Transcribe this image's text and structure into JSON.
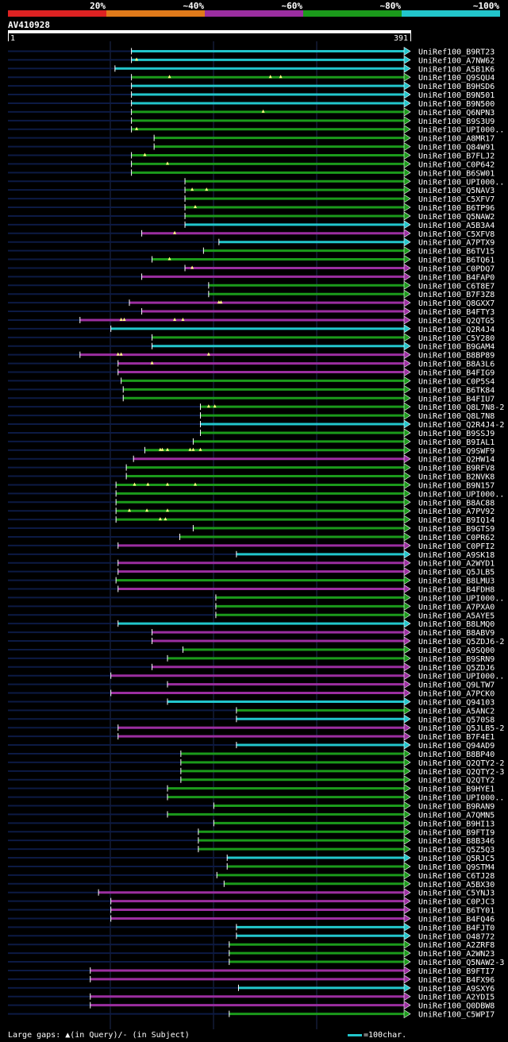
{
  "legend": {
    "colors": [
      "#dd2222",
      "#e07a1a",
      "#9b2ea0",
      "#1b9a1b",
      "#22c6cc"
    ],
    "labels": [
      "20%",
      "~40%",
      "~60%",
      "~80%",
      "~100%"
    ]
  },
  "query": {
    "id": "AV410928",
    "start": "1",
    "end": "391"
  },
  "footer": "Large gaps: ▲(in Query)/- (in Subject)",
  "scale_label": "=100char.",
  "chart_data": {
    "type": "alignment-overview",
    "query_length": 391,
    "identity_bins": [
      "20%",
      "~40%",
      "~60%",
      "~80%",
      "~100%"
    ],
    "hits": [
      {
        "label": "UniRef100_B9RT23",
        "start": 120,
        "end": 391,
        "color": "cyan",
        "gaps": []
      },
      {
        "label": "UniRef100_A7NW62",
        "start": 120,
        "end": 391,
        "color": "cyan",
        "gaps": [
          125
        ]
      },
      {
        "label": "UniRef100_A5B1K6",
        "start": 104,
        "end": 391,
        "color": "cyan",
        "gaps": []
      },
      {
        "label": "UniRef100_Q9SQU4",
        "start": 120,
        "end": 391,
        "color": "green",
        "gaps": [
          157,
          255,
          265
        ]
      },
      {
        "label": "UniRef100_B9HSD6",
        "start": 120,
        "end": 391,
        "color": "cyan",
        "gaps": []
      },
      {
        "label": "UniRef100_B9N501",
        "start": 120,
        "end": 391,
        "color": "cyan",
        "gaps": []
      },
      {
        "label": "UniRef100_B9N500",
        "start": 120,
        "end": 391,
        "color": "cyan",
        "gaps": []
      },
      {
        "label": "UniRef100_Q6NPN3",
        "start": 120,
        "end": 391,
        "color": "green",
        "gaps": [
          248
        ]
      },
      {
        "label": "UniRef100_B9S3U9",
        "start": 120,
        "end": 391,
        "color": "green",
        "gaps": []
      },
      {
        "label": "UniRef100_UPI000..",
        "start": 120,
        "end": 391,
        "color": "green",
        "gaps": [
          125
        ]
      },
      {
        "label": "UniRef100_A8MR17",
        "start": 142,
        "end": 391,
        "color": "green",
        "gaps": []
      },
      {
        "label": "UniRef100_Q84W91",
        "start": 142,
        "end": 391,
        "color": "green",
        "gaps": []
      },
      {
        "label": "UniRef100_B7FLJ2",
        "start": 120,
        "end": 391,
        "color": "green",
        "gaps": [
          133
        ]
      },
      {
        "label": "UniRef100_C0P642",
        "start": 120,
        "end": 391,
        "color": "green",
        "gaps": [
          155
        ]
      },
      {
        "label": "UniRef100_B6SW01",
        "start": 120,
        "end": 391,
        "color": "green",
        "gaps": []
      },
      {
        "label": "UniRef100_UPI000..",
        "start": 172,
        "end": 391,
        "color": "green",
        "gaps": []
      },
      {
        "label": "UniRef100_Q5NAV3",
        "start": 172,
        "end": 391,
        "color": "green",
        "gaps": [
          179,
          193
        ]
      },
      {
        "label": "UniRef100_C5XFV7",
        "start": 172,
        "end": 391,
        "color": "green",
        "gaps": []
      },
      {
        "label": "UniRef100_B6TP96",
        "start": 172,
        "end": 391,
        "color": "green",
        "gaps": [
          182
        ]
      },
      {
        "label": "UniRef100_Q5NAW2",
        "start": 172,
        "end": 391,
        "color": "green",
        "gaps": []
      },
      {
        "label": "UniRef100_A5B3A4",
        "start": 172,
        "end": 391,
        "color": "cyan",
        "gaps": []
      },
      {
        "label": "UniRef100_C5XFV8",
        "start": 130,
        "end": 391,
        "color": "purple",
        "gaps": [
          162
        ]
      },
      {
        "label": "UniRef100_A7PTX9",
        "start": 205,
        "end": 391,
        "color": "cyan",
        "gaps": []
      },
      {
        "label": "UniRef100_B6TV15",
        "start": 190,
        "end": 391,
        "color": "green",
        "gaps": []
      },
      {
        "label": "UniRef100_B6TQ61",
        "start": 140,
        "end": 391,
        "color": "green",
        "gaps": [
          157
        ]
      },
      {
        "label": "UniRef100_C0PDQ7",
        "start": 172,
        "end": 391,
        "color": "purple",
        "gaps": [
          179
        ]
      },
      {
        "label": "UniRef100_B4FAP0",
        "start": 130,
        "end": 391,
        "color": "purple",
        "gaps": []
      },
      {
        "label": "UniRef100_C6T8E7",
        "start": 195,
        "end": 391,
        "color": "green",
        "gaps": []
      },
      {
        "label": "UniRef100_B7F3Z8",
        "start": 195,
        "end": 391,
        "color": "green",
        "gaps": []
      },
      {
        "label": "UniRef100_Q8GXX7",
        "start": 118,
        "end": 391,
        "color": "purple",
        "gaps": [
          205,
          207
        ]
      },
      {
        "label": "UniRef100_B4FTY3",
        "start": 130,
        "end": 391,
        "color": "purple",
        "gaps": []
      },
      {
        "label": "UniRef100_Q2QTG5",
        "start": 70,
        "end": 391,
        "color": "purple",
        "gaps": [
          110,
          113,
          162,
          170
        ]
      },
      {
        "label": "UniRef100_Q2R4J4",
        "start": 100,
        "end": 391,
        "color": "cyan",
        "gaps": []
      },
      {
        "label": "UniRef100_C5Y280",
        "start": 140,
        "end": 391,
        "color": "green",
        "gaps": []
      },
      {
        "label": "UniRef100_B9GAM4",
        "start": 140,
        "end": 391,
        "color": "cyan",
        "gaps": []
      },
      {
        "label": "UniRef100_B8BP89",
        "start": 70,
        "end": 391,
        "color": "purple",
        "gaps": [
          107,
          110,
          195
        ]
      },
      {
        "label": "UniRef100_B8A3L6",
        "start": 107,
        "end": 391,
        "color": "purple",
        "gaps": [
          140
        ]
      },
      {
        "label": "UniRef100_B4FIG9",
        "start": 107,
        "end": 391,
        "color": "purple",
        "gaps": []
      },
      {
        "label": "UniRef100_C0P5S4",
        "start": 110,
        "end": 391,
        "color": "green",
        "gaps": []
      },
      {
        "label": "UniRef100_B6TK84",
        "start": 112,
        "end": 391,
        "color": "green",
        "gaps": []
      },
      {
        "label": "UniRef100_B4FIU7",
        "start": 112,
        "end": 391,
        "color": "green",
        "gaps": []
      },
      {
        "label": "UniRef100_Q8L7N8-2",
        "start": 187,
        "end": 391,
        "color": "green",
        "gaps": [
          195,
          201
        ]
      },
      {
        "label": "UniRef100_Q8L7N8",
        "start": 187,
        "end": 391,
        "color": "green",
        "gaps": []
      },
      {
        "label": "UniRef100_Q2R4J4-2",
        "start": 187,
        "end": 391,
        "color": "cyan",
        "gaps": []
      },
      {
        "label": "UniRef100_B9SSJ9",
        "start": 187,
        "end": 391,
        "color": "green",
        "gaps": []
      },
      {
        "label": "UniRef100_B9IAL1",
        "start": 180,
        "end": 391,
        "color": "green",
        "gaps": []
      },
      {
        "label": "UniRef100_Q9SWF9",
        "start": 133,
        "end": 391,
        "color": "green",
        "gaps": [
          148,
          150,
          155,
          177,
          180,
          187
        ]
      },
      {
        "label": "UniRef100_Q2HW14",
        "start": 122,
        "end": 391,
        "color": "purple",
        "gaps": []
      },
      {
        "label": "UniRef100_B9RFV8",
        "start": 115,
        "end": 391,
        "color": "green",
        "gaps": []
      },
      {
        "label": "UniRef100_B2NVK8",
        "start": 115,
        "end": 391,
        "color": "green",
        "gaps": []
      },
      {
        "label": "UniRef100_B9N157",
        "start": 105,
        "end": 391,
        "color": "green",
        "gaps": [
          123,
          136,
          155,
          182
        ]
      },
      {
        "label": "UniRef100_UPI000..",
        "start": 105,
        "end": 391,
        "color": "green",
        "gaps": []
      },
      {
        "label": "UniRef100_B8AC88",
        "start": 105,
        "end": 391,
        "color": "green",
        "gaps": []
      },
      {
        "label": "UniRef100_A7PV92",
        "start": 105,
        "end": 391,
        "color": "green",
        "gaps": [
          118,
          135,
          155
        ]
      },
      {
        "label": "UniRef100_B9IQ14",
        "start": 105,
        "end": 391,
        "color": "green",
        "gaps": [
          148,
          153
        ]
      },
      {
        "label": "UniRef100_B9GTS9",
        "start": 180,
        "end": 391,
        "color": "green",
        "gaps": []
      },
      {
        "label": "UniRef100_C0PR62",
        "start": 167,
        "end": 391,
        "color": "green",
        "gaps": []
      },
      {
        "label": "UniRef100_C0PFI2",
        "start": 107,
        "end": 391,
        "color": "purple",
        "gaps": []
      },
      {
        "label": "UniRef100_A9SK18",
        "start": 222,
        "end": 391,
        "color": "cyan",
        "gaps": []
      },
      {
        "label": "UniRef100_A2WYD1",
        "start": 107,
        "end": 391,
        "color": "purple",
        "gaps": []
      },
      {
        "label": "UniRef100_Q5JLB5",
        "start": 107,
        "end": 391,
        "color": "purple",
        "gaps": []
      },
      {
        "label": "UniRef100_B8LMU3",
        "start": 105,
        "end": 391,
        "color": "green",
        "gaps": []
      },
      {
        "label": "UniRef100_B4FDH8",
        "start": 107,
        "end": 391,
        "color": "purple",
        "gaps": []
      },
      {
        "label": "UniRef100_UPI000..",
        "start": 202,
        "end": 391,
        "color": "green",
        "gaps": []
      },
      {
        "label": "UniRef100_A7PXA0",
        "start": 202,
        "end": 391,
        "color": "green",
        "gaps": []
      },
      {
        "label": "UniRef100_A5AYE5",
        "start": 202,
        "end": 391,
        "color": "green",
        "gaps": []
      },
      {
        "label": "UniRef100_B8LMQ0",
        "start": 107,
        "end": 391,
        "color": "cyan",
        "gaps": []
      },
      {
        "label": "UniRef100_B8ABV9",
        "start": 140,
        "end": 391,
        "color": "purple",
        "gaps": []
      },
      {
        "label": "UniRef100_Q5ZDJ6-2",
        "start": 140,
        "end": 391,
        "color": "purple",
        "gaps": []
      },
      {
        "label": "UniRef100_A9SQ00",
        "start": 170,
        "end": 391,
        "color": "green",
        "gaps": []
      },
      {
        "label": "UniRef100_B9SRN9",
        "start": 155,
        "end": 391,
        "color": "green",
        "gaps": []
      },
      {
        "label": "UniRef100_Q5ZDJ6",
        "start": 140,
        "end": 391,
        "color": "purple",
        "gaps": []
      },
      {
        "label": "UniRef100_UPI000..",
        "start": 100,
        "end": 391,
        "color": "purple",
        "gaps": []
      },
      {
        "label": "UniRef100_Q9LTW7",
        "start": 155,
        "end": 391,
        "color": "purple",
        "gaps": []
      },
      {
        "label": "UniRef100_A7PCK0",
        "start": 100,
        "end": 391,
        "color": "purple",
        "gaps": []
      },
      {
        "label": "UniRef100_Q94103",
        "start": 155,
        "end": 391,
        "color": "cyan",
        "gaps": []
      },
      {
        "label": "UniRef100_A5ANC2",
        "start": 222,
        "end": 391,
        "color": "green",
        "gaps": []
      },
      {
        "label": "UniRef100_Q570S8",
        "start": 222,
        "end": 391,
        "color": "cyan",
        "gaps": []
      },
      {
        "label": "UniRef100_Q5JLB5-2",
        "start": 107,
        "end": 391,
        "color": "purple",
        "gaps": []
      },
      {
        "label": "UniRef100_B7F4E1",
        "start": 107,
        "end": 391,
        "color": "purple",
        "gaps": []
      },
      {
        "label": "UniRef100_Q94AD9",
        "start": 222,
        "end": 391,
        "color": "cyan",
        "gaps": []
      },
      {
        "label": "UniRef100_B8BP40",
        "start": 168,
        "end": 391,
        "color": "green",
        "gaps": []
      },
      {
        "label": "UniRef100_Q2QTY2-2",
        "start": 168,
        "end": 391,
        "color": "green",
        "gaps": []
      },
      {
        "label": "UniRef100_Q2QTY2-3",
        "start": 168,
        "end": 391,
        "color": "green",
        "gaps": []
      },
      {
        "label": "UniRef100_Q2QTY2",
        "start": 168,
        "end": 391,
        "color": "green",
        "gaps": []
      },
      {
        "label": "UniRef100_B9HYE1",
        "start": 155,
        "end": 391,
        "color": "green",
        "gaps": []
      },
      {
        "label": "UniRef100_UPI000..",
        "start": 155,
        "end": 391,
        "color": "green",
        "gaps": []
      },
      {
        "label": "UniRef100_B9RAN9",
        "start": 200,
        "end": 391,
        "color": "green",
        "gaps": []
      },
      {
        "label": "UniRef100_A7QMN5",
        "start": 155,
        "end": 391,
        "color": "green",
        "gaps": []
      },
      {
        "label": "UniRef100_B9HI13",
        "start": 200,
        "end": 391,
        "color": "green",
        "gaps": []
      },
      {
        "label": "UniRef100_B9FTI9",
        "start": 185,
        "end": 391,
        "color": "green",
        "gaps": []
      },
      {
        "label": "UniRef100_B8B346",
        "start": 185,
        "end": 391,
        "color": "green",
        "gaps": []
      },
      {
        "label": "UniRef100_Q5Z5Q3",
        "start": 185,
        "end": 391,
        "color": "green",
        "gaps": []
      },
      {
        "label": "UniRef100_Q5RJC5",
        "start": 213,
        "end": 391,
        "color": "cyan",
        "gaps": []
      },
      {
        "label": "UniRef100_Q9STM4",
        "start": 213,
        "end": 391,
        "color": "green",
        "gaps": []
      },
      {
        "label": "UniRef100_C6TJ28",
        "start": 203,
        "end": 391,
        "color": "green",
        "gaps": []
      },
      {
        "label": "UniRef100_A5BX30",
        "start": 210,
        "end": 391,
        "color": "green",
        "gaps": []
      },
      {
        "label": "UniRef100_C5YNJ3",
        "start": 88,
        "end": 391,
        "color": "purple",
        "gaps": []
      },
      {
        "label": "UniRef100_C0PJC3",
        "start": 100,
        "end": 391,
        "color": "purple",
        "gaps": []
      },
      {
        "label": "UniRef100_B6TY01",
        "start": 100,
        "end": 391,
        "color": "purple",
        "gaps": []
      },
      {
        "label": "UniRef100_B4FQ46",
        "start": 100,
        "end": 391,
        "color": "purple",
        "gaps": []
      },
      {
        "label": "UniRef100_B4FJT0",
        "start": 222,
        "end": 391,
        "color": "cyan",
        "gaps": []
      },
      {
        "label": "UniRef100_O48772",
        "start": 222,
        "end": 391,
        "color": "cyan",
        "gaps": []
      },
      {
        "label": "UniRef100_A2ZRF8",
        "start": 215,
        "end": 391,
        "color": "green",
        "gaps": []
      },
      {
        "label": "UniRef100_A2WN23",
        "start": 215,
        "end": 391,
        "color": "green",
        "gaps": []
      },
      {
        "label": "UniRef100_Q5NAW2-3",
        "start": 215,
        "end": 391,
        "color": "green",
        "gaps": []
      },
      {
        "label": "UniRef100_B9FTI7",
        "start": 80,
        "end": 391,
        "color": "purple",
        "gaps": []
      },
      {
        "label": "UniRef100_B4FX96",
        "start": 80,
        "end": 391,
        "color": "purple",
        "gaps": []
      },
      {
        "label": "UniRef100_A9SXY6",
        "start": 224,
        "end": 391,
        "color": "cyan",
        "gaps": []
      },
      {
        "label": "UniRef100_A2YDI5",
        "start": 80,
        "end": 391,
        "color": "purple",
        "gaps": []
      },
      {
        "label": "UniRef100_Q0DBW8",
        "start": 80,
        "end": 391,
        "color": "purple",
        "gaps": []
      },
      {
        "label": "UniRef100_C5WPI7",
        "start": 215,
        "end": 391,
        "color": "green",
        "gaps": []
      }
    ]
  }
}
